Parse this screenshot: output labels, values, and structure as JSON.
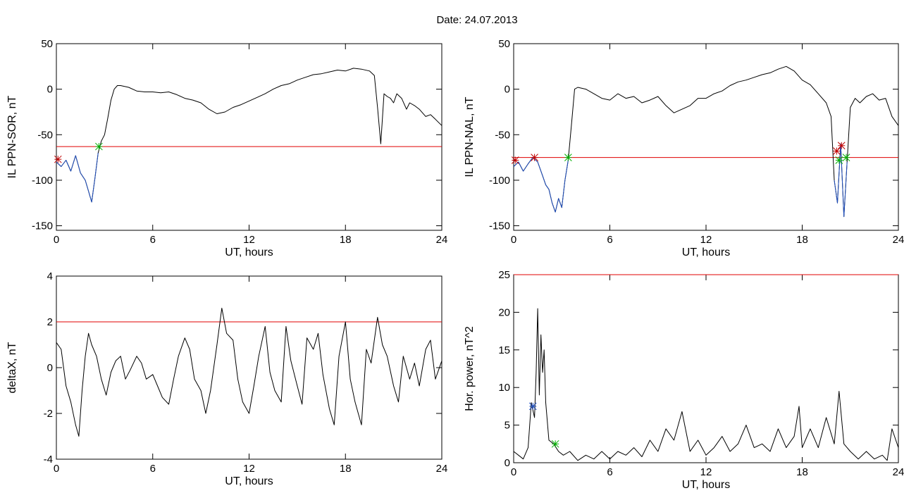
{
  "figure": {
    "title": "Date:  24.07.2013"
  },
  "chart_data": [
    {
      "id": "p1",
      "type": "line",
      "xlabel": "UT, hours",
      "ylabel": "IL PPN-SOR, nT",
      "xlim": [
        0,
        24
      ],
      "ylim": [
        -155,
        50
      ],
      "xticks": [
        0,
        6,
        12,
        18,
        24
      ],
      "yticks": [
        50,
        0,
        -50,
        -100,
        -150
      ],
      "threshold": -63,
      "threshold_color": "#e00000",
      "series": [
        {
          "color": "#000000",
          "x": [
            0,
            0.3,
            0.6,
            0.9,
            1.2,
            1.5,
            1.8,
            2.0,
            2.2,
            2.4,
            2.6,
            2.8,
            3.0,
            3.2,
            3.4,
            3.6,
            3.8,
            4.0,
            4.5,
            5.0,
            5.5,
            6.0,
            6.5,
            7.0,
            7.5,
            8.0,
            8.5,
            9.0,
            9.5,
            10.0,
            10.5,
            11.0,
            11.5,
            12.0,
            12.5,
            13.0,
            13.5,
            14.0,
            14.5,
            15.0,
            15.5,
            16.0,
            16.5,
            17.0,
            17.5,
            18.0,
            18.5,
            19.0,
            19.5,
            19.8,
            20.0,
            20.2,
            20.4,
            20.6,
            20.8,
            21.0,
            21.2,
            21.5,
            21.8,
            22.0,
            22.3,
            22.6,
            23.0,
            23.3,
            23.6,
            24.0
          ],
          "y": [
            -80,
            -85,
            -78,
            -90,
            -73,
            -92,
            -100,
            -112,
            -124,
            -98,
            -70,
            -57,
            -50,
            -32,
            -12,
            0,
            4,
            4,
            2,
            -2,
            -3,
            -3,
            -4,
            -3,
            -6,
            -10,
            -12,
            -15,
            -22,
            -27,
            -25,
            -20,
            -17,
            -13,
            -9,
            -5,
            0,
            4,
            6,
            10,
            13,
            16,
            17,
            19,
            21,
            20,
            23,
            22,
            20,
            15,
            -20,
            -60,
            -5,
            -8,
            -10,
            -15,
            -5,
            -10,
            -22,
            -15,
            -18,
            -22,
            -30,
            -28,
            -33,
            -40
          ]
        },
        {
          "color": "#1f4fbf",
          "x": [
            0,
            0.3,
            0.6,
            0.9,
            1.2,
            1.5,
            1.8,
            2.0,
            2.2,
            2.4,
            2.6
          ],
          "y": [
            -80,
            -85,
            -78,
            -90,
            -73,
            -92,
            -100,
            -112,
            -124,
            -98,
            -70
          ]
        }
      ],
      "markers": [
        {
          "x": 0.1,
          "y": -77,
          "color": "#c00000"
        },
        {
          "x": 2.65,
          "y": -63,
          "color": "#00b000"
        }
      ]
    },
    {
      "id": "p2",
      "type": "line",
      "xlabel": "UT, hours",
      "ylabel": "IL PPN-NAL, nT",
      "xlim": [
        0,
        24
      ],
      "ylim": [
        -155,
        50
      ],
      "xticks": [
        0,
        6,
        12,
        18,
        24
      ],
      "yticks": [
        50,
        0,
        -50,
        -100,
        -150
      ],
      "threshold": -75,
      "threshold_color": "#e00000",
      "series": [
        {
          "color": "#000000",
          "x": [
            0,
            0.3,
            0.6,
            0.9,
            1.2,
            1.5,
            1.8,
            2.0,
            2.2,
            2.4,
            2.6,
            2.8,
            3.0,
            3.2,
            3.4,
            3.6,
            3.8,
            4.0,
            4.5,
            5.0,
            5.5,
            6.0,
            6.5,
            7.0,
            7.5,
            8.0,
            8.5,
            9.0,
            9.5,
            10.0,
            10.5,
            11.0,
            11.5,
            12.0,
            12.5,
            13.0,
            13.5,
            14.0,
            14.5,
            15.0,
            15.5,
            16.0,
            16.5,
            17.0,
            17.5,
            18.0,
            18.5,
            19.0,
            19.5,
            19.8,
            20.0,
            20.2,
            20.4,
            20.6,
            20.8,
            21.0,
            21.3,
            21.6,
            22.0,
            22.4,
            22.8,
            23.2,
            23.6,
            24.0
          ],
          "y": [
            -85,
            -80,
            -90,
            -82,
            -75,
            -80,
            -95,
            -105,
            -110,
            -125,
            -135,
            -120,
            -130,
            -100,
            -78,
            -40,
            0,
            2,
            0,
            -5,
            -10,
            -12,
            -5,
            -10,
            -8,
            -15,
            -12,
            -8,
            -18,
            -26,
            -22,
            -18,
            -10,
            -10,
            -5,
            -2,
            4,
            8,
            10,
            13,
            16,
            18,
            22,
            25,
            20,
            10,
            5,
            -5,
            -15,
            -30,
            -100,
            -125,
            -60,
            -140,
            -80,
            -20,
            -10,
            -15,
            -8,
            -5,
            -12,
            -10,
            -30,
            -40
          ]
        },
        {
          "color": "#1f4fbf",
          "x": [
            0,
            0.3,
            0.6,
            0.9,
            1.2,
            1.5,
            1.8,
            2.0,
            2.2,
            2.4,
            2.6,
            2.8,
            3.0,
            3.2,
            3.4
          ],
          "y": [
            -85,
            -80,
            -90,
            -82,
            -75,
            -80,
            -95,
            -105,
            -110,
            -125,
            -135,
            -120,
            -130,
            -100,
            -78
          ]
        },
        {
          "color": "#1f4fbf",
          "x": [
            20.0,
            20.2,
            20.4,
            20.6,
            20.8
          ],
          "y": [
            -100,
            -125,
            -60,
            -140,
            -80
          ]
        }
      ],
      "markers": [
        {
          "x": 0.1,
          "y": -78,
          "color": "#c00000"
        },
        {
          "x": 1.3,
          "y": -75,
          "color": "#c00000"
        },
        {
          "x": 3.4,
          "y": -75,
          "color": "#00b000"
        },
        {
          "x": 20.15,
          "y": -68,
          "color": "#c00000"
        },
        {
          "x": 20.45,
          "y": -62,
          "color": "#c00000"
        },
        {
          "x": 20.3,
          "y": -78,
          "color": "#00b000"
        },
        {
          "x": 20.75,
          "y": -75,
          "color": "#00b000"
        }
      ]
    },
    {
      "id": "p3",
      "type": "line",
      "xlabel": "UT, hours",
      "ylabel": "deltaX, nT",
      "xlim": [
        0,
        24
      ],
      "ylim": [
        -4,
        4
      ],
      "xticks": [
        0,
        6,
        12,
        18,
        24
      ],
      "yticks": [
        4,
        2,
        0,
        -2,
        -4
      ],
      "threshold": 2,
      "threshold_color": "#e00000",
      "series": [
        {
          "color": "#000000",
          "x": [
            0,
            0.3,
            0.6,
            0.9,
            1.2,
            1.4,
            1.6,
            1.8,
            2.0,
            2.2,
            2.5,
            2.8,
            3.1,
            3.4,
            3.7,
            4.0,
            4.3,
            4.6,
            5.0,
            5.3,
            5.6,
            6.0,
            6.3,
            6.6,
            7.0,
            7.3,
            7.6,
            8.0,
            8.3,
            8.6,
            9.0,
            9.3,
            9.6,
            10.0,
            10.3,
            10.6,
            11.0,
            11.3,
            11.6,
            12.0,
            12.3,
            12.6,
            13.0,
            13.3,
            13.6,
            14.0,
            14.3,
            14.6,
            15.0,
            15.3,
            15.6,
            16.0,
            16.3,
            16.6,
            17.0,
            17.3,
            17.6,
            18.0,
            18.3,
            18.6,
            19.0,
            19.3,
            19.6,
            20.0,
            20.3,
            20.6,
            21.0,
            21.3,
            21.6,
            22.0,
            22.3,
            22.6,
            23.0,
            23.3,
            23.6,
            24.0
          ],
          "y": [
            1.1,
            0.8,
            -0.8,
            -1.5,
            -2.5,
            -3.0,
            -1.0,
            0.5,
            1.5,
            1.0,
            0.5,
            -0.5,
            -1.2,
            -0.2,
            0.3,
            0.5,
            -0.5,
            -0.1,
            0.5,
            0.2,
            -0.5,
            -0.3,
            -0.8,
            -1.3,
            -1.6,
            -0.5,
            0.5,
            1.3,
            0.8,
            -0.5,
            -1.0,
            -2.0,
            -1.0,
            1.0,
            2.6,
            1.5,
            1.2,
            -0.5,
            -1.5,
            -2.0,
            -0.8,
            0.5,
            1.8,
            -0.2,
            -1.0,
            -1.5,
            1.8,
            0.3,
            -0.8,
            -1.6,
            1.3,
            0.8,
            1.5,
            -0.3,
            -1.8,
            -2.5,
            0.5,
            2.0,
            -0.5,
            -1.5,
            -2.5,
            0.8,
            0.2,
            2.2,
            1.0,
            0.5,
            -0.8,
            -1.5,
            0.5,
            -0.5,
            0.2,
            -0.8,
            0.8,
            1.2,
            -0.5,
            0.3
          ]
        }
      ],
      "markers": []
    },
    {
      "id": "p4",
      "type": "line",
      "xlabel": "UT, hours",
      "ylabel": "Hor. power, nT^2",
      "xlim": [
        0,
        24
      ],
      "ylim": [
        0,
        25
      ],
      "xticks": [
        0,
        6,
        12,
        18,
        24
      ],
      "yticks": [
        25,
        20,
        15,
        10,
        5,
        0
      ],
      "threshold": 25,
      "threshold_color": "#e00000",
      "series": [
        {
          "color": "#000000",
          "x": [
            0,
            0.3,
            0.6,
            0.9,
            1.1,
            1.3,
            1.4,
            1.5,
            1.6,
            1.7,
            1.8,
            1.9,
            2.0,
            2.2,
            2.5,
            2.8,
            3.1,
            3.5,
            4.0,
            4.5,
            5.0,
            5.5,
            6.0,
            6.5,
            7.0,
            7.5,
            8.0,
            8.5,
            9.0,
            9.5,
            10.0,
            10.5,
            11.0,
            11.5,
            12.0,
            12.5,
            13.0,
            13.5,
            14.0,
            14.5,
            15.0,
            15.5,
            16.0,
            16.5,
            17.0,
            17.5,
            17.8,
            18.0,
            18.5,
            19.0,
            19.5,
            20.0,
            20.3,
            20.6,
            21.0,
            21.5,
            22.0,
            22.5,
            23.0,
            23.3,
            23.6,
            24.0
          ],
          "y": [
            1.5,
            1.0,
            0.5,
            2.0,
            8.0,
            6.0,
            12.0,
            20.5,
            9.0,
            17.0,
            12.0,
            15.0,
            8.0,
            3.0,
            2.5,
            1.5,
            1.0,
            1.5,
            0.3,
            1.0,
            0.5,
            1.5,
            0.5,
            1.5,
            1.0,
            2.0,
            0.8,
            3.0,
            1.5,
            4.5,
            3.0,
            6.8,
            1.5,
            3.0,
            1.0,
            2.0,
            3.5,
            1.5,
            2.5,
            5.0,
            2.0,
            2.5,
            1.5,
            4.5,
            2.0,
            3.5,
            7.5,
            2.0,
            4.5,
            2.0,
            6.0,
            2.5,
            9.5,
            2.5,
            1.5,
            0.5,
            1.5,
            0.5,
            1.0,
            0.3,
            4.5,
            2.0
          ]
        }
      ],
      "markers": [
        {
          "x": 1.2,
          "y": 7.5,
          "color": "#1f4fbf"
        },
        {
          "x": 2.6,
          "y": 2.5,
          "color": "#00b000"
        }
      ]
    }
  ]
}
